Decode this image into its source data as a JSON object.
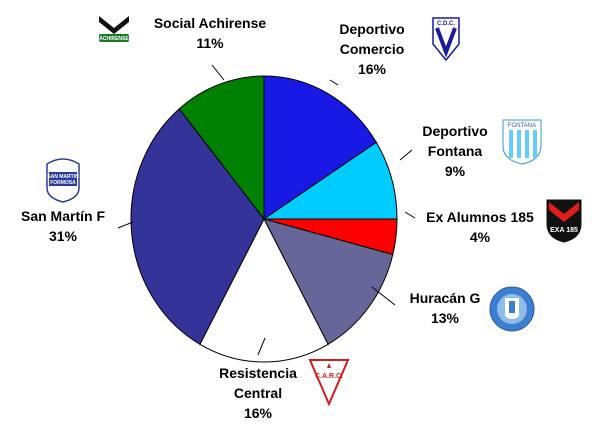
{
  "chart_data": {
    "type": "pie",
    "slices": [
      {
        "name": "Deportivo Comercio",
        "label_lines": [
          "Deportivo",
          "Comercio"
        ],
        "value_label": "16%",
        "value": 16,
        "color": "#1919e6",
        "logo": "cdc-shield-logo",
        "logo_text": "C.D.C."
      },
      {
        "name": "Deportivo Fontana",
        "label_lines": [
          "Deportivo",
          "Fontana"
        ],
        "value_label": "9%",
        "value": 9,
        "color": "#00ccff",
        "logo": "fontana-shield-logo",
        "logo_text": "FONTANA"
      },
      {
        "name": "Ex Alumnos 185",
        "label_lines": [
          "Ex Alumnos 185"
        ],
        "value_label": "4%",
        "value": 4,
        "color": "#ff0000",
        "logo": "exa-shield-logo",
        "logo_text": "EXA 185"
      },
      {
        "name": "Huracán G",
        "label_lines": [
          "Huracán G"
        ],
        "value_label": "13%",
        "value": 13,
        "color": "#666699",
        "logo": "huracan-crest-logo",
        "logo_text": ""
      },
      {
        "name": "Resistencia Central",
        "label_lines": [
          "Resistencia",
          "Central"
        ],
        "value_label": "16%",
        "value": 16,
        "color": "#ffffff",
        "logo": "carc-shield-logo",
        "logo_text": "C.A.R.C."
      },
      {
        "name": "San Martín F",
        "label_lines": [
          "San Martín F"
        ],
        "value_label": "31%",
        "value": 31,
        "color": "#333399",
        "logo": "san-martin-shield-logo",
        "logo_text": "SAN MARTIN FORMOSA"
      },
      {
        "name": "Social Achirense",
        "label_lines": [
          "Social Achirense"
        ],
        "value_label": "11%",
        "value": 11,
        "color": "#008000",
        "logo": "achirense-logo",
        "logo_text": "ACHIRENSE"
      }
    ],
    "start": "12 o'clock",
    "direction": "clockwise",
    "outline_color": "#000000"
  }
}
